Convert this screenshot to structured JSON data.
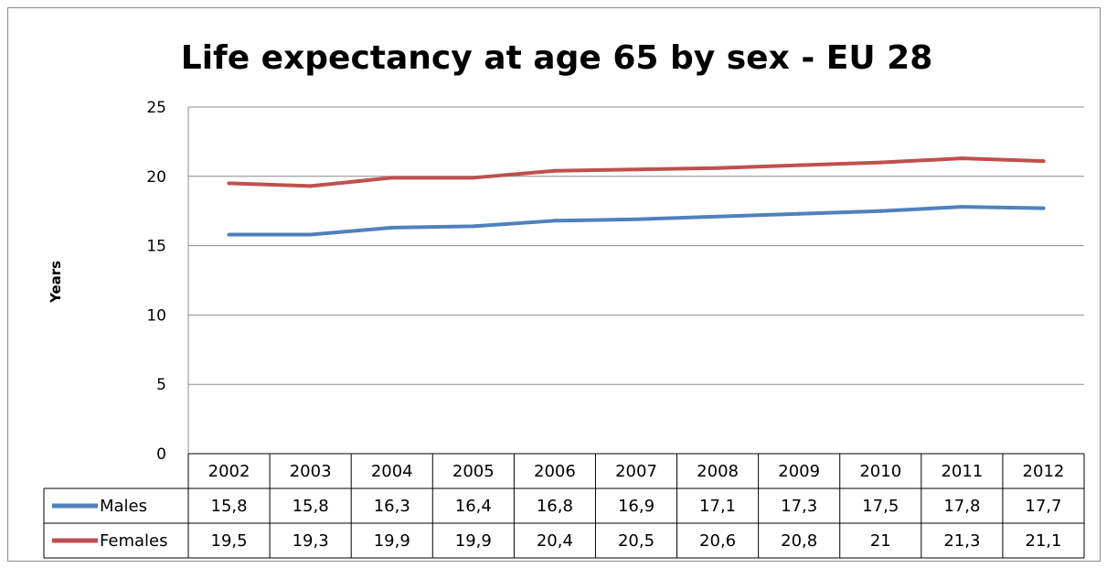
{
  "chart_data": {
    "type": "line",
    "title": "Life expectancy at age 65 by sex - EU 28",
    "xlabel": "",
    "ylabel": "Years",
    "ylim": [
      0,
      25
    ],
    "yticks": [
      "0",
      "5",
      "10",
      "15",
      "20",
      "25"
    ],
    "grid": true,
    "legend": "data-table",
    "categories": [
      "2002",
      "2003",
      "2004",
      "2005",
      "2006",
      "2007",
      "2008",
      "2009",
      "2010",
      "2011",
      "2012"
    ],
    "series": [
      {
        "name": "Males",
        "color": "#4f81bd",
        "values": [
          15.8,
          15.8,
          16.3,
          16.4,
          16.8,
          16.9,
          17.1,
          17.3,
          17.5,
          17.8,
          17.7
        ],
        "labels": [
          "15,8",
          "15,8",
          "16,3",
          "16,4",
          "16,8",
          "16,9",
          "17,1",
          "17,3",
          "17,5",
          "17,8",
          "17,7"
        ]
      },
      {
        "name": "Females",
        "color": "#c0504d",
        "values": [
          19.5,
          19.3,
          19.9,
          19.9,
          20.4,
          20.5,
          20.6,
          20.8,
          21,
          21.3,
          21.1
        ],
        "labels": [
          "19,5",
          "19,3",
          "19,9",
          "19,9",
          "20,4",
          "20,5",
          "20,6",
          "20,8",
          "21",
          "21,3",
          "21,1"
        ]
      }
    ]
  }
}
